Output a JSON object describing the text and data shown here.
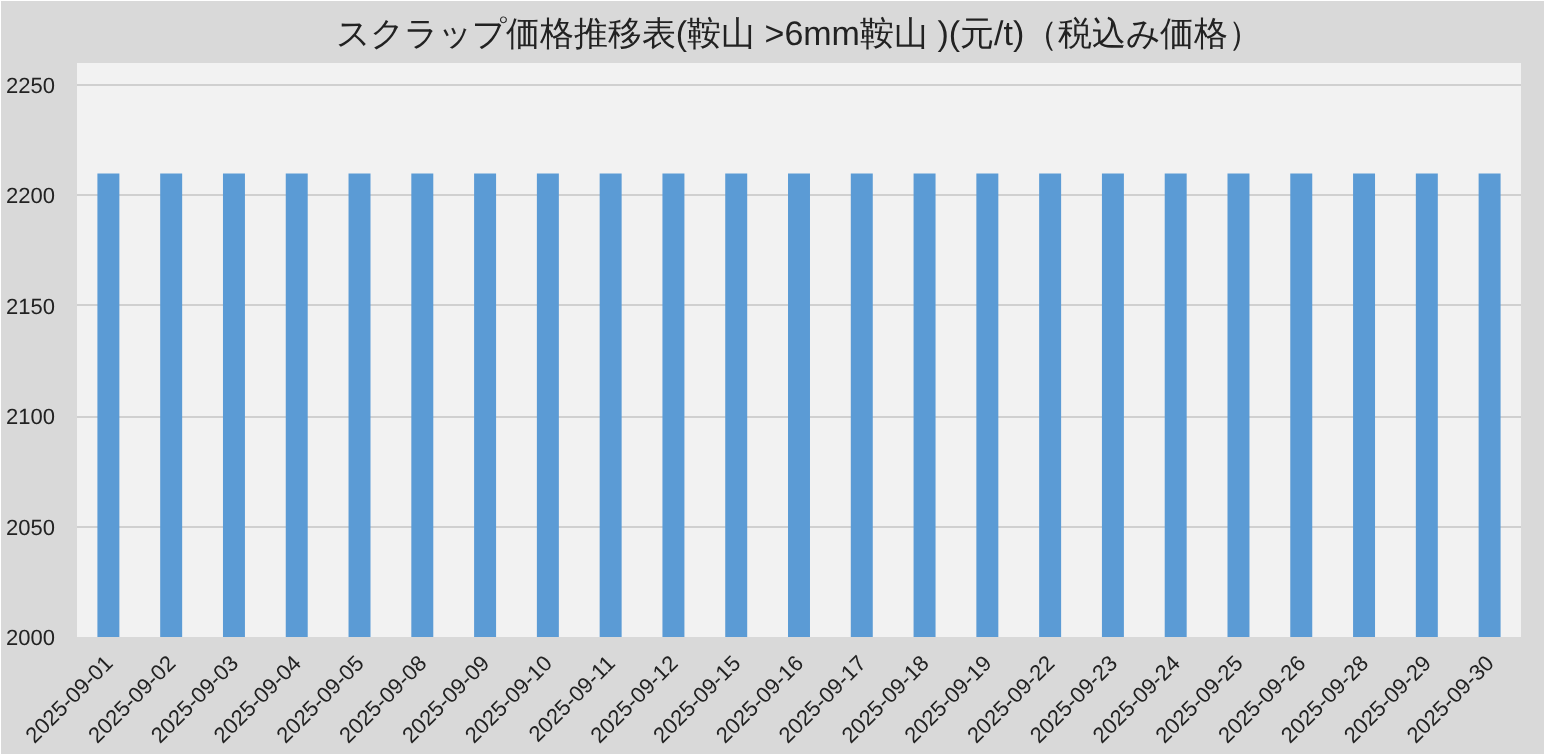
{
  "chart_data": {
    "type": "bar",
    "title": "スクラップ価格推移表(鞍山 >6mm鞍山 )(元/t)（税込み価格）",
    "categories": [
      "2025-09-01",
      "2025-09-02",
      "2025-09-03",
      "2025-09-04",
      "2025-09-05",
      "2025-09-08",
      "2025-09-09",
      "2025-09-10",
      "2025-09-11",
      "2025-09-12",
      "2025-09-15",
      "2025-09-16",
      "2025-09-17",
      "2025-09-18",
      "2025-09-19",
      "2025-09-22",
      "2025-09-23",
      "2025-09-24",
      "2025-09-25",
      "2025-09-26",
      "2025-09-28",
      "2025-09-29",
      "2025-09-30"
    ],
    "values": [
      2210,
      2210,
      2210,
      2210,
      2210,
      2210,
      2210,
      2210,
      2210,
      2210,
      2210,
      2210,
      2210,
      2210,
      2210,
      2210,
      2210,
      2210,
      2210,
      2210,
      2210,
      2210,
      2210
    ],
    "color": "#5b9bd5",
    "ylim": [
      2000,
      2260
    ],
    "yticks": [
      2000,
      2050,
      2100,
      2150,
      2200,
      2250
    ],
    "grid": "y"
  }
}
